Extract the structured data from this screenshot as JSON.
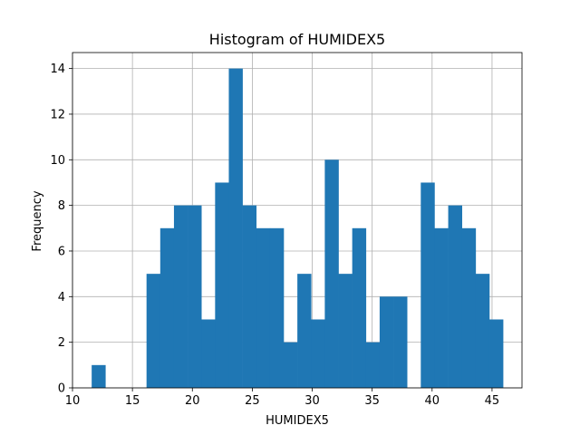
{
  "chart_data": {
    "type": "bar",
    "title": "Histogram of HUMIDEX5",
    "xlabel": "HUMIDEX5",
    "ylabel": "Frequency",
    "xlim": [
      10,
      47.5
    ],
    "ylim": [
      0,
      14.7
    ],
    "xticks": [
      10,
      15,
      20,
      25,
      30,
      35,
      40,
      45
    ],
    "yticks": [
      0,
      2,
      4,
      6,
      8,
      10,
      12,
      14
    ],
    "grid": true,
    "bar_color": "#1f77b4",
    "bins": {
      "start": 11.6,
      "width": 1.144,
      "counts": [
        1,
        0,
        0,
        0,
        5,
        7,
        8,
        8,
        3,
        9,
        14,
        8,
        7,
        7,
        2,
        5,
        3,
        10,
        5,
        7,
        2,
        4,
        4,
        0,
        9,
        7,
        8,
        7,
        5,
        3
      ]
    }
  }
}
